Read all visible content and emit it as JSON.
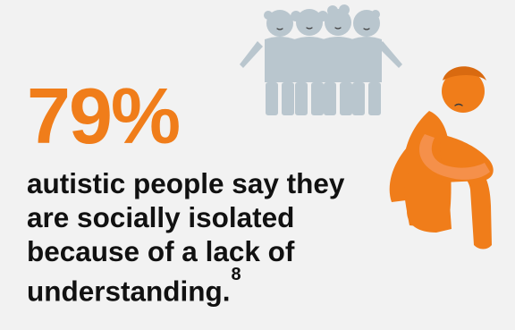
{
  "headline": {
    "stat_value": "79%",
    "caption": "autistic people say they are socially isolated because of a lack of understanding.",
    "footnote_marker": "8"
  },
  "illustration": {
    "group_icon": "group-of-four-children-icon",
    "isolated_icon": "sad-seated-person-icon"
  },
  "colors": {
    "background": "#f2f2f2",
    "accent_orange": "#f07d1a",
    "group_gray": "#b9c6ce",
    "text": "#111111"
  }
}
